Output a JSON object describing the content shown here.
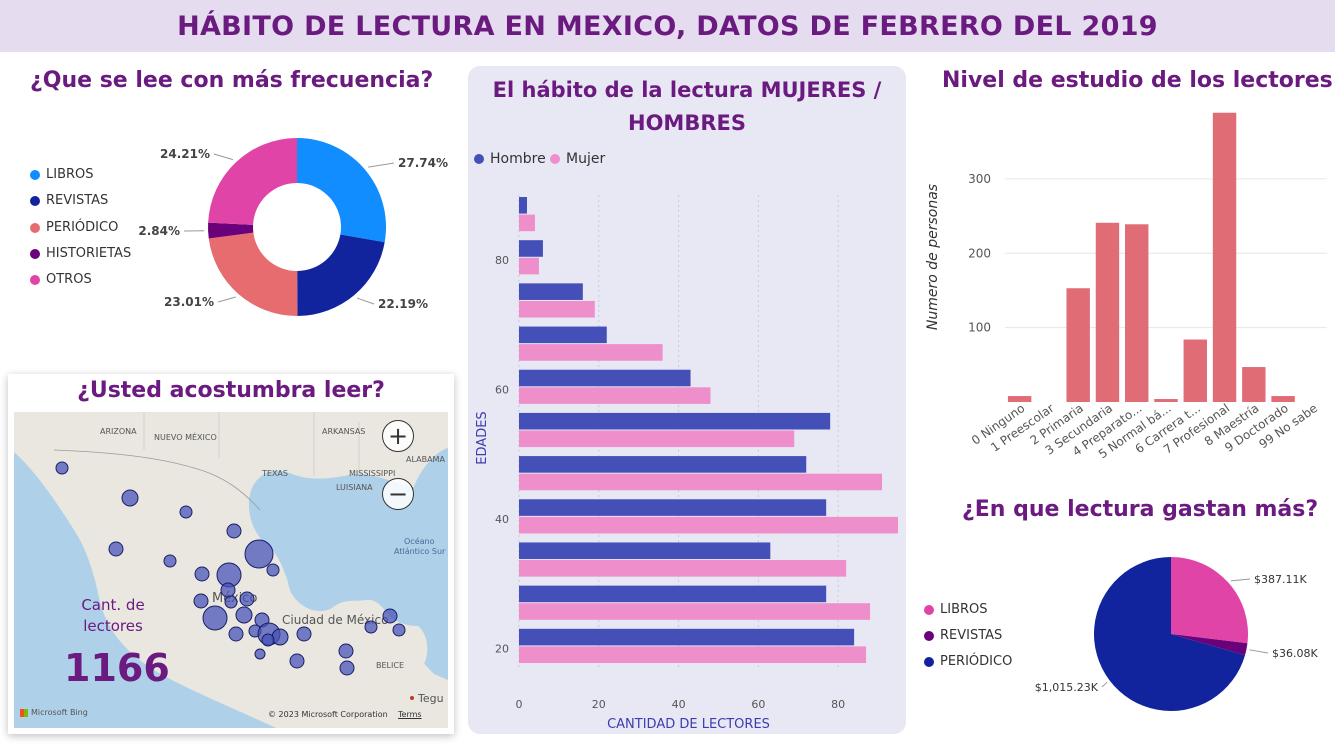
{
  "header": {
    "title": "HÁBITO DE LECTURA EN MEXICO, DATOS DE FEBRERO DEL 2019"
  },
  "donut": {
    "title": "¿Que se lee con más frecuencia?",
    "legend": [
      {
        "label": "LIBROS",
        "color": "#118dff"
      },
      {
        "label": "REVISTAS",
        "color": "#12239e"
      },
      {
        "label": "PERIÓDICO",
        "color": "#e66c6f"
      },
      {
        "label": "HISTORIETAS",
        "color": "#6b007b"
      },
      {
        "label": "OTROS",
        "color": "#e044a7"
      }
    ]
  },
  "bars": {
    "title_line1": "El hábito de la lectura MUJERES /",
    "title_line2": "HOMBRES",
    "legend": [
      {
        "label": "Hombre",
        "color": "#4450b8"
      },
      {
        "label": "Mujer",
        "color": "#ee8ecb"
      }
    ]
  },
  "levels": {
    "title": "Nivel de estudio de los lectores"
  },
  "map": {
    "title": "¿Usted acostumbra leer?",
    "kpi_label_line1": "Cant. de",
    "kpi_label_line2": "lectores",
    "kpi_value": "1166",
    "zoom_in": "+",
    "zoom_out": "−",
    "labels": [
      "ARIZONA",
      "NUEVO MÉXICO",
      "ARKANSAS",
      "TEXAS",
      "MISSISSIPPI",
      "ALABAMA",
      "LUISIANA",
      "Océano",
      "Atlántico Sur",
      "México",
      "Ciudad de México",
      "BELICE",
      "Tegu"
    ],
    "brand": "Microsoft Bing",
    "copyright": "© 2023 Microsoft Corporation",
    "terms": "Terms"
  },
  "spend": {
    "title": "¿En que lectura gastan más?",
    "legend": [
      {
        "label": "LIBROS",
        "color": "#e044a7"
      },
      {
        "label": "REVISTAS",
        "color": "#6b007b"
      },
      {
        "label": "PERIÓDICO",
        "color": "#12239e"
      }
    ]
  },
  "chart_data": [
    {
      "type": "pie",
      "title": "¿Que se lee con más frecuencia?",
      "categories": [
        "LIBROS",
        "REVISTAS",
        "PERIÓDICO",
        "HISTORIETAS",
        "OTROS"
      ],
      "values": [
        27.74,
        22.19,
        23.01,
        2.84,
        24.21
      ],
      "labels": [
        "27.74%",
        "22.19%",
        "23.01%",
        "2.84%",
        "24.21%"
      ],
      "colors": [
        "#118dff",
        "#12239e",
        "#e66c6f",
        "#6b007b",
        "#e044a7"
      ],
      "legend": "left"
    },
    {
      "type": "bar",
      "orientation": "horizontal",
      "title": "El hábito de la lectura MUJERES / HOMBRES",
      "xlabel": "CANTIDAD DE LECTORES",
      "ylabel": "EDADES",
      "xlim": [
        0,
        95
      ],
      "xticks": [
        0,
        20,
        40,
        60,
        80
      ],
      "yticks": [
        {
          "label": "80",
          "row": 1
        },
        {
          "label": "60",
          "row": 4
        },
        {
          "label": "40",
          "row": 7
        },
        {
          "label": "20",
          "row": 10
        }
      ],
      "series": [
        {
          "name": "Hombre",
          "color": "#4450b8",
          "values": [
            2,
            6,
            16,
            22,
            43,
            78,
            72,
            77,
            63,
            77,
            84
          ]
        },
        {
          "name": "Mujer",
          "color": "#ee8ecb",
          "values": [
            4,
            5,
            19,
            36,
            48,
            69,
            91,
            95,
            82,
            88,
            87
          ]
        }
      ],
      "legend": "top-left"
    },
    {
      "type": "bar",
      "title": "Nivel de estudio de los lectores",
      "ylabel": "Numero de personas",
      "categories": [
        "0 Ninguno",
        "1 Preescolar",
        "2 Primaria",
        "3 Secundaria",
        "4 Preparato...",
        "5 Normal bá...",
        "6 Carrera t...",
        "7 Profesional",
        "8 Maestría",
        "9 Doctorado",
        "99 No sabe"
      ],
      "values": [
        8,
        0,
        153,
        241,
        239,
        4,
        84,
        389,
        47,
        8,
        0
      ],
      "ylim": [
        0,
        390
      ],
      "yticks": [
        100,
        200,
        300
      ],
      "color": "#e06c75"
    },
    {
      "type": "pie",
      "title": "¿En que lectura gastan más?",
      "categories": [
        "LIBROS",
        "REVISTAS",
        "PERIÓDICO"
      ],
      "values": [
        387.11,
        36.08,
        1015.23
      ],
      "labels": [
        "$387.11K",
        "$36.08K",
        "$1,015.23K"
      ],
      "colors": [
        "#e044a7",
        "#6b007b",
        "#12239e"
      ],
      "legend": "left"
    }
  ]
}
